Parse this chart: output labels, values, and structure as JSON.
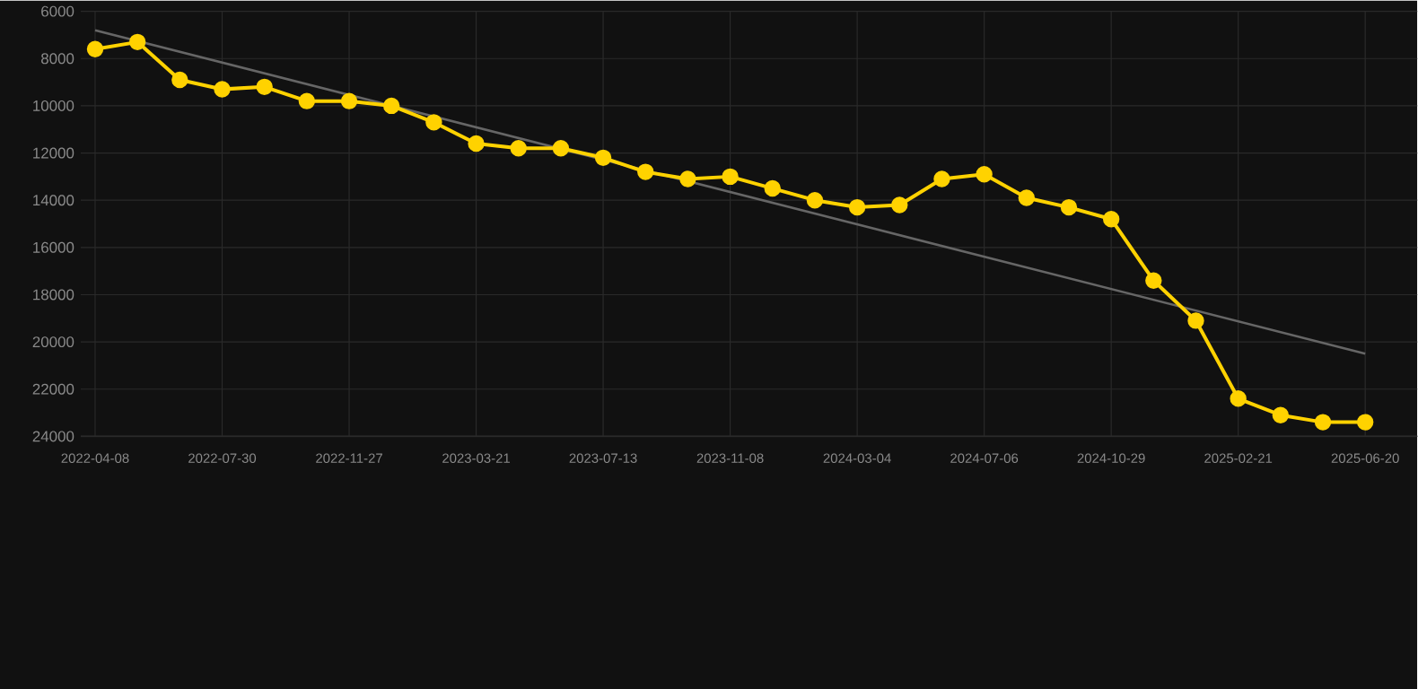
{
  "chart_data": {
    "type": "line",
    "categories": [
      "2022-04-08",
      null,
      null,
      "2022-07-30",
      null,
      null,
      "2022-11-27",
      null,
      null,
      "2023-03-21",
      null,
      null,
      "2023-07-13",
      null,
      null,
      "2023-11-08",
      null,
      null,
      "2024-03-04",
      null,
      null,
      "2024-07-06",
      null,
      null,
      "2024-10-29",
      null,
      null,
      "2025-02-21",
      null,
      null,
      "2025-06-20"
    ],
    "series": [
      {
        "color": "#ffd200",
        "marker": "circle",
        "values": [
          7600,
          7300,
          8900,
          9300,
          9200,
          9800,
          9800,
          10000,
          10700,
          11600,
          11800,
          11800,
          12200,
          12800,
          13100,
          13000,
          13500,
          14000,
          14300,
          14200,
          13100,
          12900,
          13900,
          14300,
          14800,
          17400,
          19100,
          22400,
          23100,
          23400,
          23400
        ]
      },
      {
        "color": "#666666",
        "marker": "none",
        "values": [
          6800,
          null,
          null,
          null,
          null,
          null,
          null,
          null,
          null,
          null,
          null,
          null,
          null,
          null,
          null,
          null,
          null,
          null,
          null,
          null,
          null,
          null,
          null,
          null,
          null,
          null,
          null,
          null,
          null,
          null,
          20500
        ]
      }
    ],
    "ylim": [
      24000,
      6000
    ],
    "yticks": [
      6000,
      8000,
      10000,
      12000,
      14000,
      16000,
      18000,
      20000,
      22000,
      24000
    ],
    "grid": true
  }
}
